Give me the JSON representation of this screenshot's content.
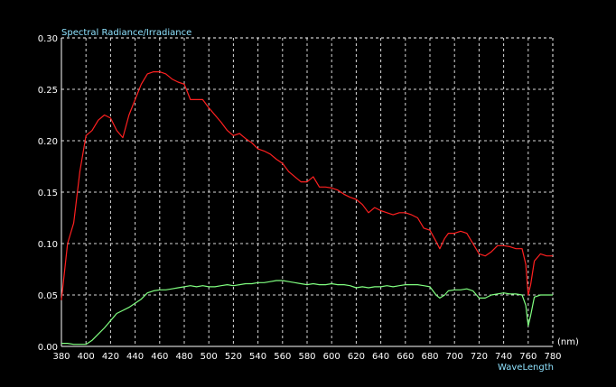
{
  "chart_data": {
    "type": "line",
    "ylabel": "Spectral Radiance/Irradiance",
    "xlabel": "WaveLength",
    "x_unit": "(nm)",
    "xlim": [
      380,
      780
    ],
    "ylim": [
      0,
      0.3
    ],
    "x_ticks": [
      "380",
      "400",
      "420",
      "440",
      "460",
      "480",
      "500",
      "520",
      "540",
      "560",
      "580",
      "600",
      "620",
      "640",
      "660",
      "680",
      "700",
      "720",
      "740",
      "760",
      "780"
    ],
    "y_ticks": [
      "0.00",
      "0.05",
      "0.10",
      "0.15",
      "0.20",
      "0.25",
      "0.30"
    ],
    "grid": true,
    "colors": {
      "background": "#000000",
      "grid": "#ffffff",
      "ylabel": "#8fe3ff",
      "series_red": "#ff2020",
      "series_green": "#80ff80"
    },
    "series": [
      {
        "color": "#ff2020",
        "x": [
          380,
          385,
          390,
          395,
          400,
          405,
          410,
          415,
          420,
          425,
          430,
          435,
          440,
          445,
          450,
          455,
          460,
          465,
          470,
          475,
          480,
          485,
          490,
          495,
          500,
          505,
          510,
          515,
          520,
          525,
          530,
          535,
          540,
          545,
          550,
          555,
          560,
          565,
          570,
          575,
          580,
          585,
          590,
          595,
          600,
          605,
          610,
          615,
          620,
          625,
          630,
          635,
          640,
          645,
          650,
          655,
          660,
          665,
          670,
          675,
          680,
          685,
          688,
          692,
          695,
          700,
          705,
          710,
          715,
          720,
          725,
          730,
          735,
          740,
          745,
          750,
          755,
          758,
          760,
          762,
          765,
          770,
          775,
          780
        ],
        "y": [
          0.045,
          0.1,
          0.12,
          0.17,
          0.205,
          0.21,
          0.22,
          0.225,
          0.222,
          0.21,
          0.203,
          0.225,
          0.24,
          0.255,
          0.265,
          0.267,
          0.267,
          0.265,
          0.26,
          0.257,
          0.255,
          0.24,
          0.24,
          0.24,
          0.232,
          0.225,
          0.218,
          0.21,
          0.205,
          0.207,
          0.202,
          0.198,
          0.192,
          0.19,
          0.187,
          0.182,
          0.178,
          0.17,
          0.165,
          0.16,
          0.16,
          0.165,
          0.155,
          0.155,
          0.154,
          0.152,
          0.148,
          0.145,
          0.143,
          0.138,
          0.13,
          0.135,
          0.132,
          0.13,
          0.128,
          0.13,
          0.13,
          0.128,
          0.125,
          0.115,
          0.113,
          0.102,
          0.095,
          0.105,
          0.11,
          0.11,
          0.112,
          0.11,
          0.1,
          0.09,
          0.088,
          0.092,
          0.098,
          0.098,
          0.097,
          0.095,
          0.095,
          0.08,
          0.05,
          0.06,
          0.083,
          0.09,
          0.088,
          0.088
        ]
      },
      {
        "color": "#80ff80",
        "x": [
          380,
          385,
          390,
          395,
          400,
          405,
          410,
          415,
          420,
          425,
          430,
          435,
          440,
          445,
          450,
          455,
          460,
          465,
          470,
          475,
          480,
          485,
          490,
          495,
          500,
          505,
          510,
          515,
          520,
          525,
          530,
          535,
          540,
          545,
          550,
          555,
          560,
          565,
          570,
          575,
          580,
          585,
          590,
          595,
          600,
          605,
          610,
          615,
          620,
          625,
          630,
          635,
          640,
          645,
          650,
          655,
          660,
          665,
          670,
          675,
          680,
          685,
          688,
          692,
          695,
          700,
          705,
          710,
          715,
          720,
          725,
          730,
          735,
          740,
          745,
          750,
          755,
          758,
          760,
          762,
          765,
          770,
          775,
          780
        ],
        "y": [
          0.003,
          0.003,
          0.002,
          0.002,
          0.002,
          0.006,
          0.012,
          0.018,
          0.025,
          0.032,
          0.035,
          0.038,
          0.042,
          0.046,
          0.052,
          0.054,
          0.055,
          0.055,
          0.056,
          0.057,
          0.058,
          0.059,
          0.058,
          0.059,
          0.058,
          0.058,
          0.059,
          0.06,
          0.059,
          0.06,
          0.061,
          0.061,
          0.062,
          0.062,
          0.063,
          0.064,
          0.064,
          0.063,
          0.062,
          0.061,
          0.06,
          0.061,
          0.06,
          0.06,
          0.061,
          0.06,
          0.06,
          0.059,
          0.057,
          0.058,
          0.057,
          0.058,
          0.058,
          0.059,
          0.058,
          0.059,
          0.06,
          0.06,
          0.06,
          0.059,
          0.058,
          0.05,
          0.047,
          0.05,
          0.054,
          0.055,
          0.055,
          0.056,
          0.054,
          0.047,
          0.047,
          0.05,
          0.051,
          0.052,
          0.051,
          0.051,
          0.05,
          0.04,
          0.02,
          0.03,
          0.048,
          0.05,
          0.05,
          0.05
        ]
      }
    ]
  }
}
